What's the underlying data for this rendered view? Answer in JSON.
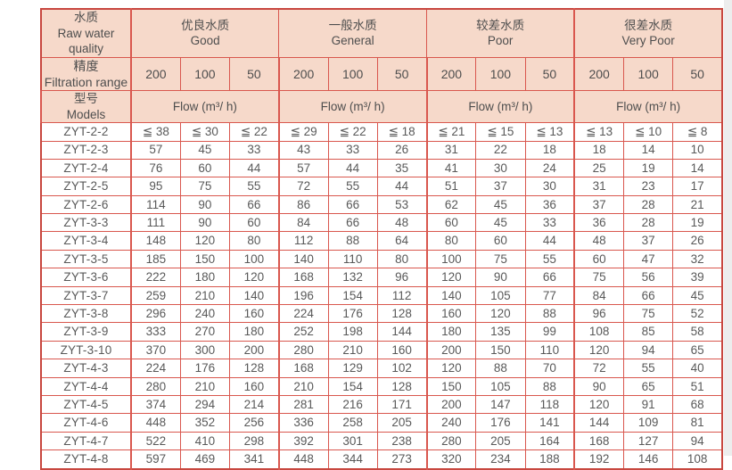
{
  "table": {
    "header": {
      "quality_col": {
        "zh": "水质",
        "en": "Raw water quality"
      },
      "range_col": {
        "zh": "精度",
        "en": "Filtration range"
      },
      "models_col": {
        "zh": "型号",
        "en": "Models"
      },
      "groups": [
        {
          "zh": "优良水质",
          "en": "Good"
        },
        {
          "zh": "一般水质",
          "en": "General"
        },
        {
          "zh": "较差水质",
          "en": "Poor"
        },
        {
          "zh": "很差水质",
          "en": "Very Poor"
        }
      ],
      "ranges": [
        "200",
        "100",
        "50"
      ],
      "flow_label": "Flow (m³/ h)"
    },
    "rows": [
      {
        "model": "ZYT-2-2",
        "values": [
          "≦ 38",
          "≦ 30",
          "≦ 22",
          "≦ 29",
          "≦ 22",
          "≦ 18",
          "≦ 21",
          "≦ 15",
          "≦ 13",
          "≦ 13",
          "≦ 10",
          "≦ 8"
        ]
      },
      {
        "model": "ZYT-2-3",
        "values": [
          "57",
          "45",
          "33",
          "43",
          "33",
          "26",
          "31",
          "22",
          "18",
          "18",
          "14",
          "10"
        ]
      },
      {
        "model": "ZYT-2-4",
        "values": [
          "76",
          "60",
          "44",
          "57",
          "44",
          "35",
          "41",
          "30",
          "24",
          "25",
          "19",
          "14"
        ]
      },
      {
        "model": "ZYT-2-5",
        "values": [
          "95",
          "75",
          "55",
          "72",
          "55",
          "44",
          "51",
          "37",
          "30",
          "31",
          "23",
          "17"
        ]
      },
      {
        "model": "ZYT-2-6",
        "values": [
          "114",
          "90",
          "66",
          "86",
          "66",
          "53",
          "62",
          "45",
          "36",
          "37",
          "28",
          "21"
        ]
      },
      {
        "model": "ZYT-3-3",
        "values": [
          "111",
          "90",
          "60",
          "84",
          "66",
          "48",
          "60",
          "45",
          "33",
          "36",
          "28",
          "19"
        ]
      },
      {
        "model": "ZYT-3-4",
        "values": [
          "148",
          "120",
          "80",
          "112",
          "88",
          "64",
          "80",
          "60",
          "44",
          "48",
          "37",
          "26"
        ]
      },
      {
        "model": "ZYT-3-5",
        "values": [
          "185",
          "150",
          "100",
          "140",
          "110",
          "80",
          "100",
          "75",
          "55",
          "60",
          "47",
          "32"
        ]
      },
      {
        "model": "ZYT-3-6",
        "values": [
          "222",
          "180",
          "120",
          "168",
          "132",
          "96",
          "120",
          "90",
          "66",
          "75",
          "56",
          "39"
        ]
      },
      {
        "model": "ZYT-3-7",
        "values": [
          "259",
          "210",
          "140",
          "196",
          "154",
          "112",
          "140",
          "105",
          "77",
          "84",
          "66",
          "45"
        ]
      },
      {
        "model": "ZYT-3-8",
        "values": [
          "296",
          "240",
          "160",
          "224",
          "176",
          "128",
          "160",
          "120",
          "88",
          "96",
          "75",
          "52"
        ]
      },
      {
        "model": "ZYT-3-9",
        "values": [
          "333",
          "270",
          "180",
          "252",
          "198",
          "144",
          "180",
          "135",
          "99",
          "108",
          "85",
          "58"
        ]
      },
      {
        "model": "ZYT-3-10",
        "values": [
          "370",
          "300",
          "200",
          "280",
          "210",
          "160",
          "200",
          "150",
          "110",
          "120",
          "94",
          "65"
        ]
      },
      {
        "model": "ZYT-4-3",
        "values": [
          "224",
          "176",
          "128",
          "168",
          "129",
          "102",
          "120",
          "88",
          "70",
          "72",
          "55",
          "40"
        ]
      },
      {
        "model": "ZYT-4-4",
        "values": [
          "280",
          "210",
          "160",
          "210",
          "154",
          "128",
          "150",
          "105",
          "88",
          "90",
          "65",
          "51"
        ]
      },
      {
        "model": "ZYT-4-5",
        "values": [
          "374",
          "294",
          "214",
          "281",
          "216",
          "171",
          "200",
          "147",
          "118",
          "120",
          "91",
          "68"
        ]
      },
      {
        "model": "ZYT-4-6",
        "values": [
          "448",
          "352",
          "256",
          "336",
          "258",
          "205",
          "240",
          "176",
          "141",
          "144",
          "109",
          "81"
        ]
      },
      {
        "model": "ZYT-4-7",
        "values": [
          "522",
          "410",
          "298",
          "392",
          "301",
          "238",
          "280",
          "205",
          "164",
          "168",
          "127",
          "94"
        ]
      },
      {
        "model": "ZYT-4-8",
        "values": [
          "597",
          "469",
          "341",
          "448",
          "344",
          "273",
          "320",
          "234",
          "188",
          "192",
          "146",
          "108"
        ]
      }
    ]
  },
  "colors": {
    "header_bg": "#f6d9ca",
    "border_red": "#d9574e",
    "border_dark_red": "#c8473f",
    "border_light_pink": "#f0b0a8",
    "text_gray": "#595959",
    "right_strip_gray": "#ededed"
  }
}
